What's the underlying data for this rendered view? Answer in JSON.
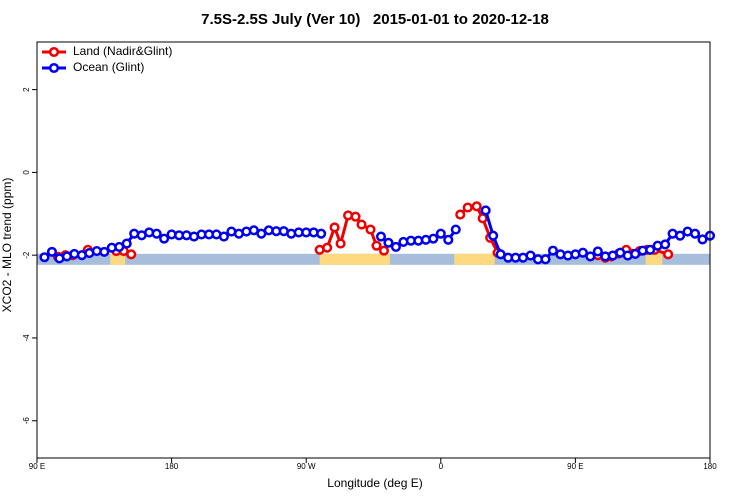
{
  "chart_data": {
    "type": "line",
    "title": "7.5S-2.5S July (Ver 10)   2015-01-01 to 2020-12-18",
    "x_label": "Longitude (deg E)",
    "y_label": "XCO2 - MLO trend (ppm)",
    "xlim": [
      90,
      540
    ],
    "xticks": [
      {
        "value": 90,
        "label": "90 E"
      },
      {
        "value": 180,
        "label": "180"
      },
      {
        "value": 270,
        "label": "90 W"
      },
      {
        "value": 360,
        "label": "0"
      },
      {
        "value": 450,
        "label": "90 E"
      },
      {
        "value": 540,
        "label": "180"
      }
    ],
    "ylim": [
      -6.9,
      3.15
    ],
    "yticks": [
      2,
      0,
      -2,
      -4,
      -6
    ],
    "legend": "top-left",
    "surface_strip": {
      "y": -2.1,
      "segments": [
        {
          "x0": 90,
          "x1": 540,
          "color": "#a6bddb"
        },
        {
          "x0": 139,
          "x1": 149,
          "color": "#ffd980"
        },
        {
          "x0": 279,
          "x1": 326,
          "color": "#ffd980"
        },
        {
          "x0": 369,
          "x1": 396,
          "color": "#ffd980"
        },
        {
          "x0": 497,
          "x1": 508,
          "color": "#ffd980"
        }
      ]
    },
    "series": [
      {
        "name": "Land (Nadir&Glint)",
        "color": "#ee0000",
        "x": [
          104,
          109,
          114,
          124,
          143,
          148,
          153,
          200,
          279,
          284,
          289,
          293,
          298,
          303,
          307,
          313,
          317,
          322,
          350,
          373,
          378,
          384,
          388,
          393,
          398,
          430,
          465,
          470,
          474,
          479,
          484,
          493,
          498,
          503,
          512
        ],
        "values": [
          -2.04,
          -2.0,
          -2.0,
          -1.87,
          -1.9,
          -1.9,
          -1.98,
          null,
          -1.87,
          -1.82,
          -1.33,
          -1.72,
          -1.04,
          -1.07,
          -1.26,
          -1.38,
          -1.77,
          -1.89,
          null,
          -1.02,
          -0.85,
          -0.82,
          -1.11,
          -1.58,
          -1.94,
          null,
          -2.0,
          -2.06,
          -2.03,
          -1.96,
          -1.87,
          -1.9,
          -1.87,
          -1.87,
          -1.98
        ]
      },
      {
        "name": "Ocean (Glint)",
        "color": "#0000ee",
        "x": [
          95,
          100,
          105,
          110,
          115,
          120,
          125,
          130,
          135,
          140,
          145,
          150,
          155,
          160,
          165,
          170,
          175,
          180,
          185,
          190,
          195,
          200,
          205,
          210,
          215,
          220,
          225,
          230,
          235,
          240,
          245,
          250,
          255,
          260,
          265,
          270,
          275,
          280,
          285,
          320,
          325,
          330,
          335,
          340,
          345,
          350,
          355,
          360,
          365,
          370,
          375,
          390,
          395,
          400,
          405,
          410,
          415,
          420,
          425,
          430,
          435,
          440,
          445,
          450,
          455,
          460,
          465,
          470,
          475,
          480,
          485,
          490,
          495,
          500,
          505,
          510,
          515,
          520,
          525,
          530,
          535,
          540
        ],
        "values": [
          -2.05,
          -1.92,
          -2.08,
          -2.03,
          -1.97,
          -2.0,
          -1.95,
          -1.9,
          -1.92,
          -1.82,
          -1.8,
          -1.72,
          -1.48,
          -1.52,
          -1.45,
          -1.48,
          -1.6,
          -1.5,
          -1.52,
          -1.52,
          -1.55,
          -1.5,
          -1.5,
          -1.5,
          -1.55,
          -1.43,
          -1.48,
          -1.43,
          -1.4,
          -1.48,
          -1.4,
          -1.42,
          -1.42,
          -1.48,
          -1.45,
          -1.45,
          -1.45,
          -1.48,
          null,
          -1.55,
          -1.7,
          -1.8,
          -1.68,
          -1.65,
          -1.65,
          -1.63,
          -1.6,
          -1.48,
          -1.63,
          -1.38,
          null,
          -0.92,
          -1.53,
          -1.98,
          -2.06,
          -2.06,
          -2.06,
          -2.01,
          -2.1,
          -2.1,
          -1.89,
          -1.98,
          -2.01,
          -1.98,
          -1.94,
          -2.03,
          -1.91,
          -2.03,
          -2.01,
          -1.94,
          -2.01,
          -1.97,
          -1.89,
          -1.87,
          -1.77,
          -1.74,
          -1.48,
          -1.53,
          -1.43,
          -1.48,
          -1.62,
          -1.53
        ]
      }
    ]
  }
}
